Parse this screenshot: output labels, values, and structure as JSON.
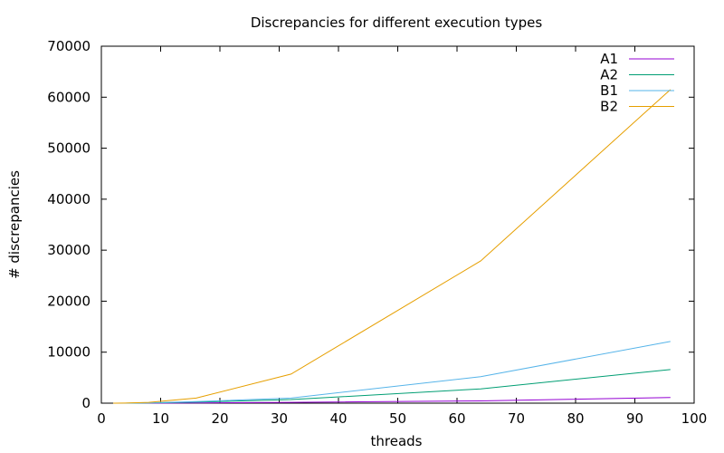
{
  "chart_data": {
    "type": "line",
    "title": "Discrepancies for different execution types",
    "xlabel": "threads",
    "ylabel": "# discrepancies",
    "xlim": [
      0,
      100
    ],
    "ylim": [
      0,
      70000
    ],
    "xticks": [
      0,
      10,
      20,
      30,
      40,
      50,
      60,
      70,
      80,
      90,
      100
    ],
    "yticks": [
      0,
      10000,
      20000,
      30000,
      40000,
      50000,
      60000,
      70000
    ],
    "grid": false,
    "legend_position": "top-right",
    "series": [
      {
        "name": "A1",
        "color": "#9400d3",
        "x": [
          2,
          4,
          8,
          16,
          32,
          64,
          96
        ],
        "y": [
          0,
          0,
          5,
          40,
          150,
          450,
          1100
        ]
      },
      {
        "name": "A2",
        "color": "#009e73",
        "x": [
          2,
          4,
          8,
          16,
          32,
          64,
          96
        ],
        "y": [
          0,
          5,
          40,
          200,
          700,
          2800,
          6600
        ]
      },
      {
        "name": "B1",
        "color": "#56b4e9",
        "x": [
          2,
          4,
          8,
          16,
          32,
          64,
          96
        ],
        "y": [
          0,
          10,
          60,
          300,
          1000,
          5200,
          12100
        ]
      },
      {
        "name": "B2",
        "color": "#e69f00",
        "x": [
          2,
          4,
          8,
          16,
          32,
          64,
          96
        ],
        "y": [
          0,
          20,
          150,
          1000,
          5700,
          27900,
          61500
        ]
      }
    ]
  }
}
